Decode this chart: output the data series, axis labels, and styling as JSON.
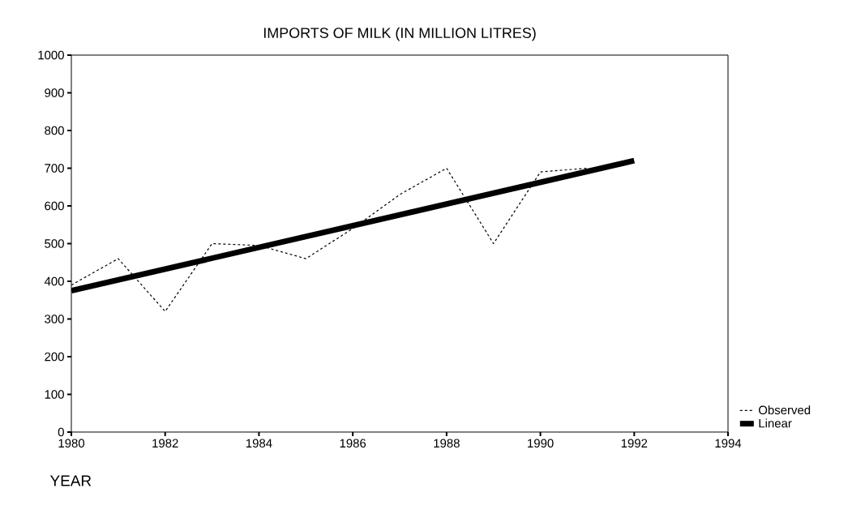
{
  "chart_data": {
    "type": "line",
    "title": "IMPORTS OF MILK (IN MILLION LITRES)",
    "xlabel": "YEAR",
    "x": [
      1980,
      1981,
      1982,
      1983,
      1984,
      1985,
      1986,
      1987,
      1988,
      1989,
      1990,
      1991
    ],
    "series": [
      {
        "name": "Observed",
        "color": "#000000",
        "line_style": "dashed",
        "values": [
          390,
          460,
          320,
          500,
          495,
          460,
          540,
          630,
          700,
          500,
          690,
          700
        ]
      },
      {
        "name": "Linear",
        "color": "#000000",
        "line_style": "solid",
        "x": [
          1980,
          1992
        ],
        "values": [
          375,
          720
        ]
      }
    ],
    "xlim": [
      1980,
      1994
    ],
    "xticks": [
      1980,
      1982,
      1984,
      1986,
      1988,
      1990,
      1992,
      1994
    ],
    "ylim": [
      0,
      1000
    ],
    "yticks": [
      0,
      100,
      200,
      300,
      400,
      500,
      600,
      700,
      800,
      900,
      1000
    ],
    "grid": false,
    "legend": "bottom right",
    "marker": "none"
  }
}
